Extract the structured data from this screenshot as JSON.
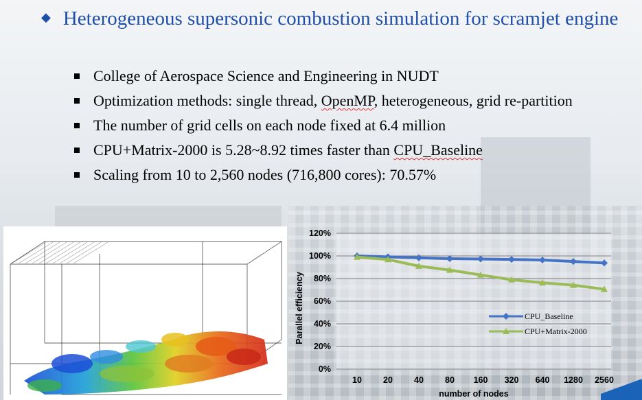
{
  "title": "Heterogeneous supersonic combustion simulation for scramjet engine",
  "bullets": [
    {
      "text": "College of Aerospace Science and Engineering in NUDT"
    },
    {
      "pre": "Optimization methods: single thread, ",
      "squiggle": "OpenMP",
      "post": ", heterogeneous, grid re-partition"
    },
    {
      "text": "The number of grid cells on each node fixed at 6.4 million"
    },
    {
      "pre": "CPU+Matrix-2000 is 5.28~8.92 times faster than ",
      "squiggle": "CPU_Baseline",
      "post": ""
    },
    {
      "text": "Scaling from 10 to 2,560 nodes (716,800 cores): 70.57%"
    }
  ],
  "colors": {
    "title": "#1f4fa8",
    "cpu_baseline": "#4472c4",
    "cpu_matrix": "#9bbb59"
  },
  "chart_data": {
    "type": "line",
    "categories": [
      "10",
      "20",
      "40",
      "80",
      "160",
      "320",
      "640",
      "1280",
      "2560"
    ],
    "series": [
      {
        "name": "CPU_Baseline",
        "values": [
          100,
          99.2,
          98.3,
          97.6,
          97.3,
          96.9,
          96.4,
          95.1,
          93.8
        ]
      },
      {
        "name": "CPU+Matrix-2000",
        "values": [
          99.0,
          96.8,
          91.0,
          87.5,
          83.2,
          79.0,
          76.3,
          74.2,
          70.57
        ]
      }
    ],
    "xlabel": "number of nodes",
    "ylabel": "Parallel efficiency",
    "yticks": [
      "0%",
      "20%",
      "40%",
      "60%",
      "80%",
      "100%",
      "120%"
    ],
    "ylim": [
      0,
      120
    ],
    "grid": true,
    "legend": "center-right"
  }
}
